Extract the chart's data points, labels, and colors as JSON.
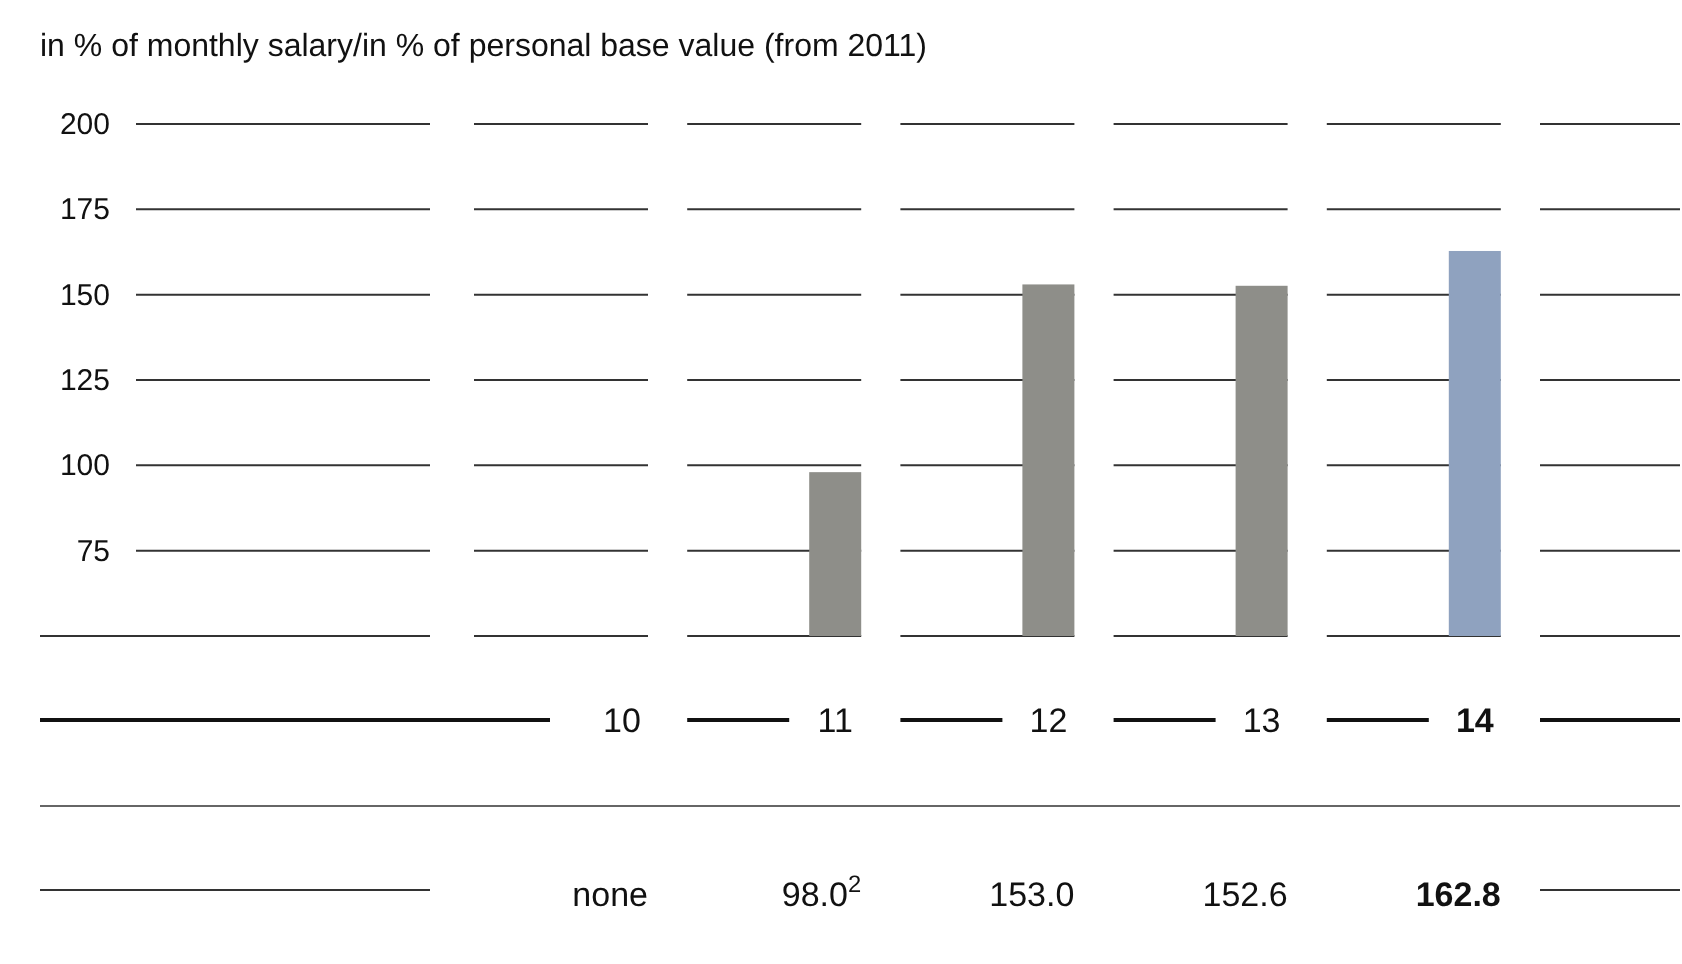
{
  "chart_data": {
    "type": "bar",
    "title": "in % of monthly salary/in % of personal base value (from 2011)",
    "categories": [
      null,
      "10",
      "11",
      "12",
      "13",
      "14",
      null
    ],
    "values": [
      null,
      null,
      98.0,
      153.0,
      152.6,
      162.8,
      null
    ],
    "colors": [
      "#8e8e89",
      "#8e8e89",
      "#8e8e89",
      "#8e8e89",
      "#8e8e89",
      "#8fa2bf",
      "#8e8e89"
    ],
    "value_labels": [
      null,
      "none",
      "98.0$^{2}$",
      "153.0",
      "152.6",
      "162.8",
      null
    ],
    "ylim": [
      50,
      200
    ],
    "yticks": [
      75,
      100,
      125,
      150,
      175,
      200
    ],
    "grid": "y"
  }
}
